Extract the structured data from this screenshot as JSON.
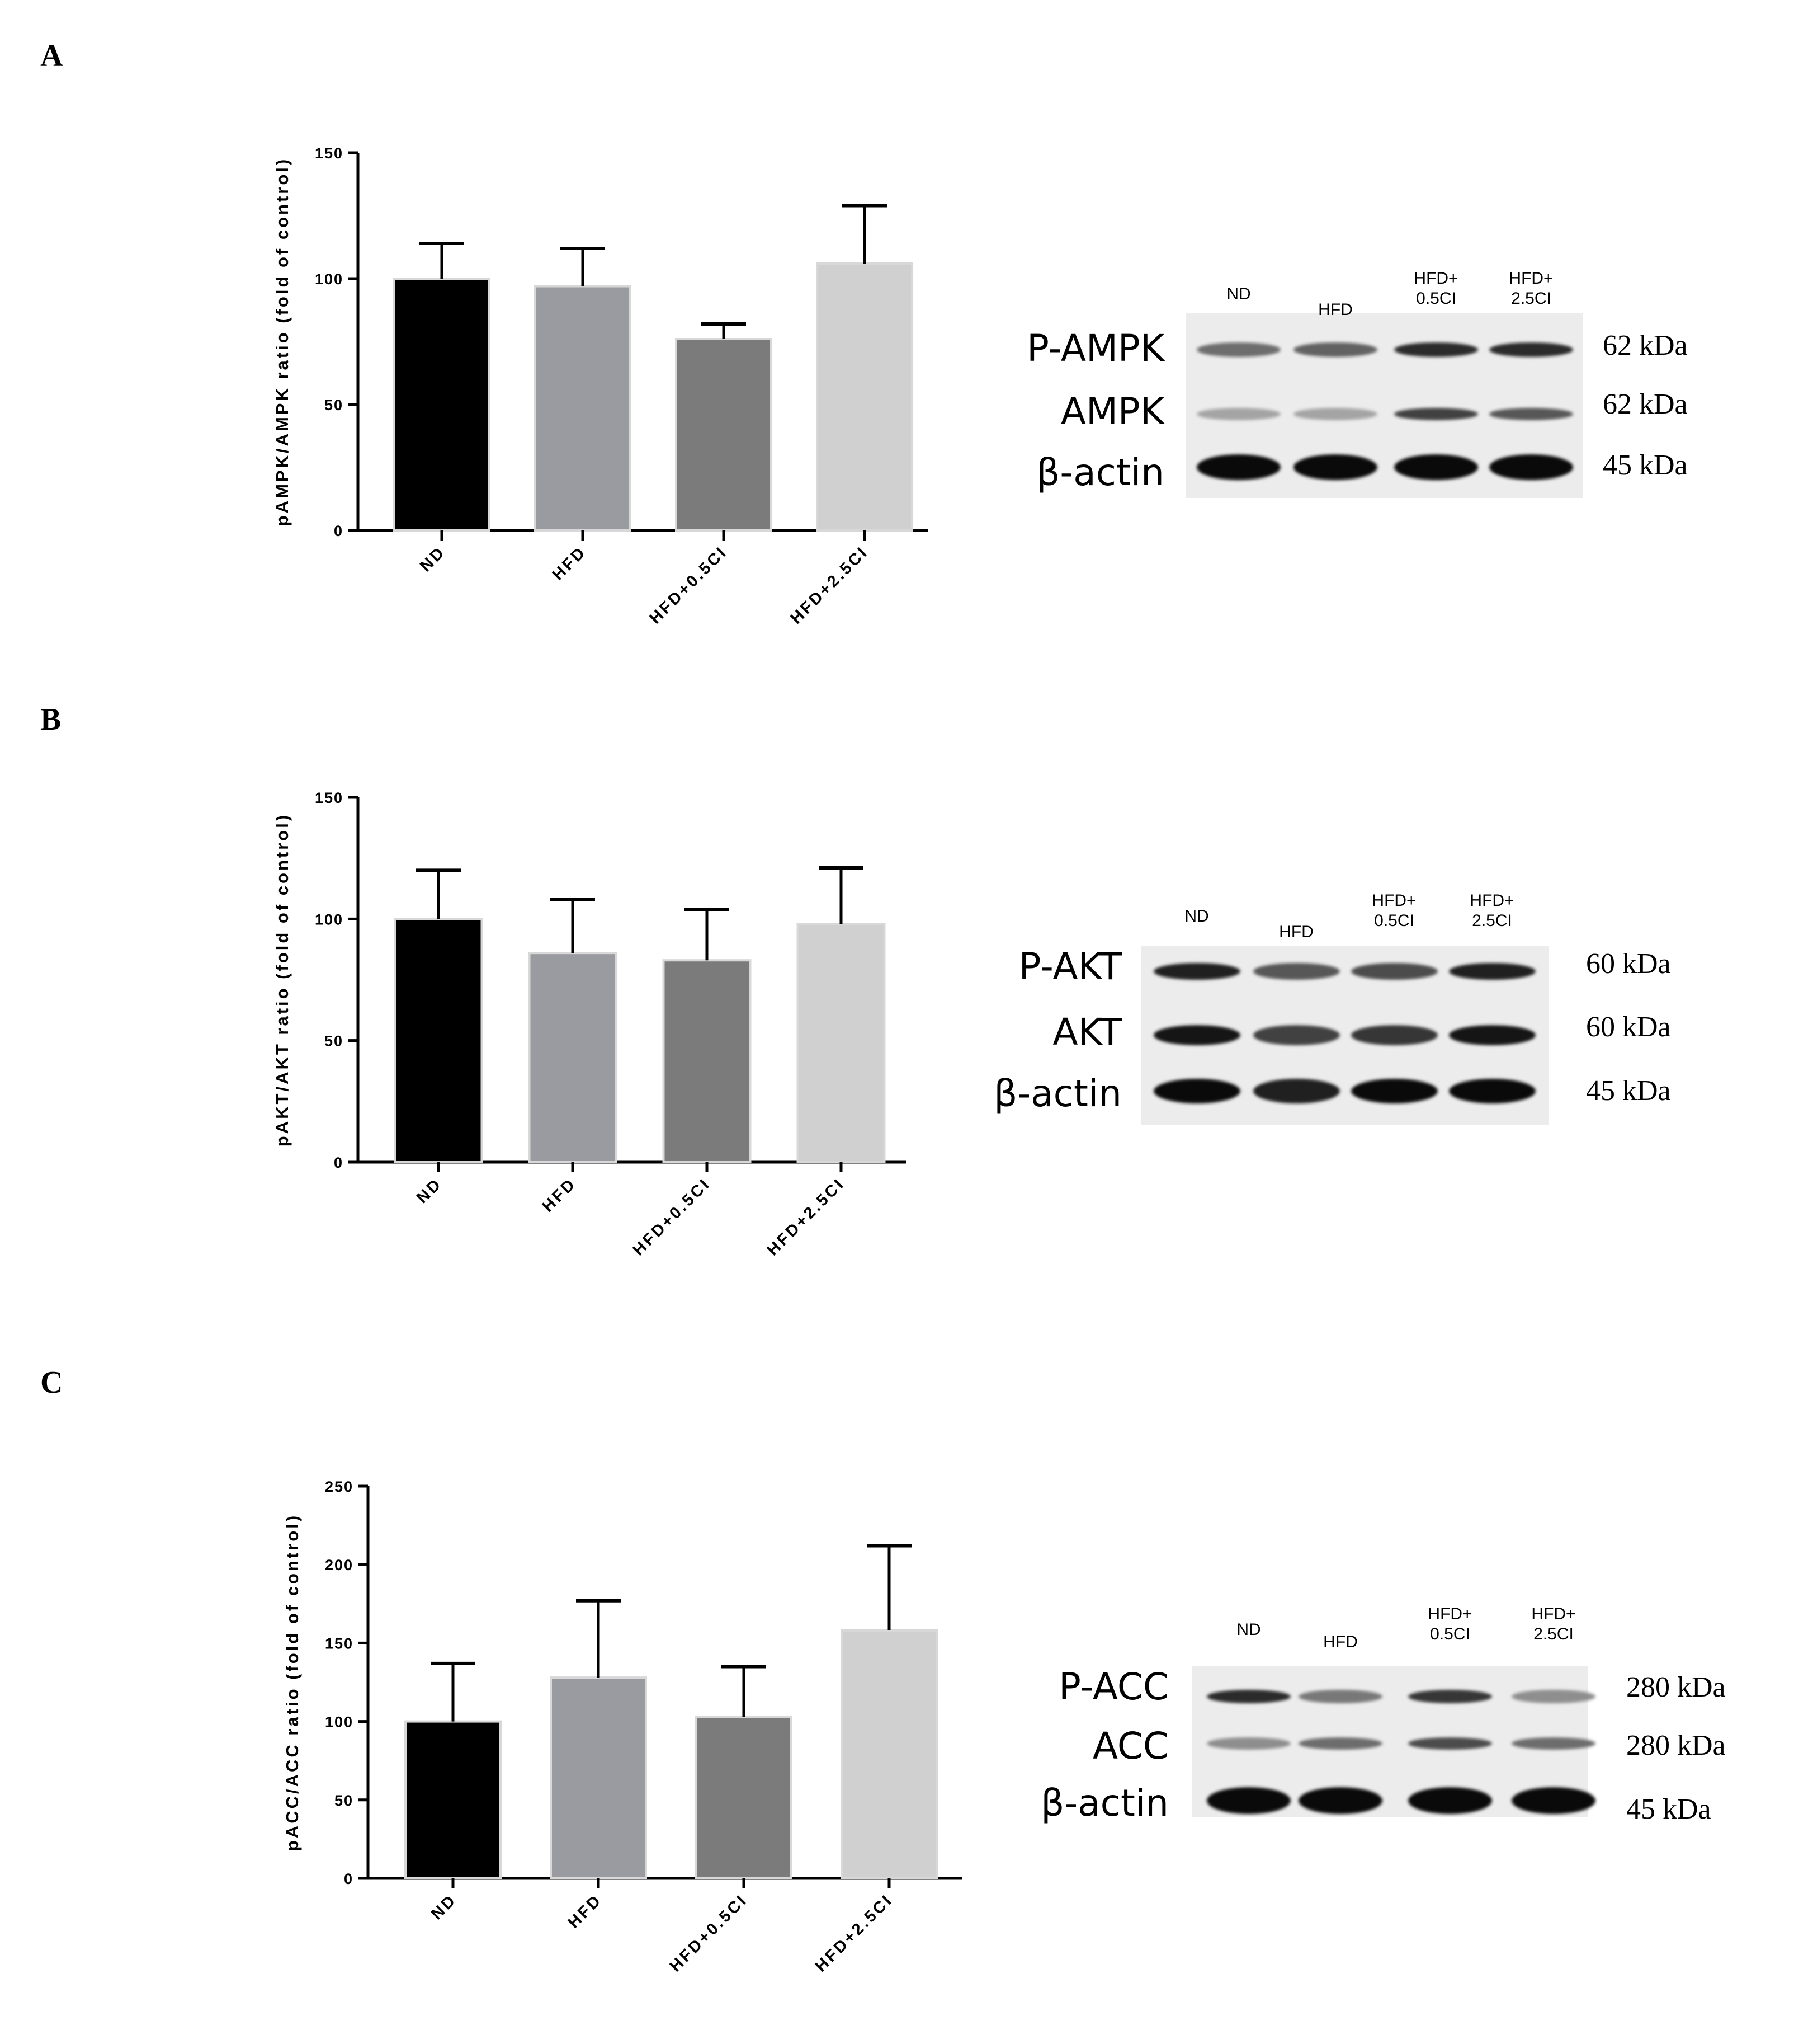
{
  "chart_data": [
    {
      "panel": "A",
      "type": "bar",
      "categories": [
        "ND",
        "HFD",
        "HFD+0.5CI",
        "HFD+2.5CI"
      ],
      "values": [
        100,
        97,
        76,
        106
      ],
      "errors": [
        14,
        15,
        6,
        23
      ],
      "bar_colors": [
        "#000000",
        "#9a9ba0",
        "#7b7b7b",
        "#d0d0d0"
      ],
      "ylabel": "pAMPK/AMPK ratio (fold of control)",
      "ylim": [
        0,
        150
      ],
      "yticks": [
        0,
        50,
        100,
        150
      ],
      "grid": false
    },
    {
      "panel": "B",
      "type": "bar",
      "categories": [
        "ND",
        "HFD",
        "HFD+0.5CI",
        "HFD+2.5CI"
      ],
      "values": [
        100,
        86,
        83,
        98
      ],
      "errors": [
        20,
        22,
        21,
        23
      ],
      "bar_colors": [
        "#000000",
        "#9a9ba0",
        "#7b7b7b",
        "#d0d0d0"
      ],
      "ylabel": "pAKT/AKT ratio (fold of control)",
      "ylim": [
        0,
        150
      ],
      "yticks": [
        0,
        50,
        100,
        150
      ],
      "grid": false
    },
    {
      "panel": "C",
      "type": "bar",
      "categories": [
        "ND",
        "HFD",
        "HFD+0.5CI",
        "HFD+2.5CI"
      ],
      "values": [
        100,
        128,
        103,
        158
      ],
      "errors": [
        37,
        49,
        32,
        54
      ],
      "bar_colors": [
        "#000000",
        "#9a9ba0",
        "#7b7b7b",
        "#d0d0d0"
      ],
      "ylabel": "pACC/ACC ratio (fold of control)",
      "ylim": [
        0,
        250
      ],
      "yticks": [
        0,
        50,
        100,
        150,
        200,
        250
      ],
      "grid": false
    }
  ],
  "blots": [
    {
      "panel": "A",
      "lanes": [
        [
          "ND"
        ],
        [
          "HFD"
        ],
        [
          "HFD+",
          "0.5CI"
        ],
        [
          "HFD+",
          "2.5CI"
        ]
      ],
      "rows": [
        {
          "protein": "P-AMPK",
          "kda": "62 kDa",
          "intensity": [
            0.55,
            0.6,
            0.85,
            0.85
          ]
        },
        {
          "protein": "AMPK",
          "kda": "62 kDa",
          "intensity": [
            0.3,
            0.3,
            0.75,
            0.65
          ]
        },
        {
          "protein": "β-actin",
          "kda": "45 kDa",
          "intensity": [
            1,
            1,
            1,
            1
          ]
        }
      ]
    },
    {
      "panel": "B",
      "lanes": [
        [
          "ND"
        ],
        [
          "HFD"
        ],
        [
          "HFD+",
          "0.5CI"
        ],
        [
          "HFD+",
          "2.5CI"
        ]
      ],
      "rows": [
        {
          "protein": "P-AKT",
          "kda": "60 kDa",
          "intensity": [
            0.9,
            0.65,
            0.7,
            0.9
          ]
        },
        {
          "protein": "AKT",
          "kda": "60 kDa",
          "intensity": [
            0.95,
            0.75,
            0.8,
            0.95
          ]
        },
        {
          "protein": "β-actin",
          "kda": "45 kDa",
          "intensity": [
            1,
            0.9,
            1,
            1
          ]
        }
      ]
    },
    {
      "panel": "C",
      "lanes": [
        [
          "ND"
        ],
        [
          "HFD"
        ],
        [
          "HFD+",
          "0.5CI"
        ],
        [
          "HFD+",
          "2.5CI"
        ]
      ],
      "rows": [
        {
          "protein": "P-ACC",
          "kda": "280 kDa",
          "intensity": [
            0.85,
            0.5,
            0.8,
            0.4
          ]
        },
        {
          "protein": "ACC",
          "kda": "280 kDa",
          "intensity": [
            0.4,
            0.55,
            0.7,
            0.55
          ]
        },
        {
          "protein": "β-actin",
          "kda": "45 kDa",
          "intensity": [
            1,
            1,
            1,
            1
          ]
        }
      ]
    }
  ]
}
